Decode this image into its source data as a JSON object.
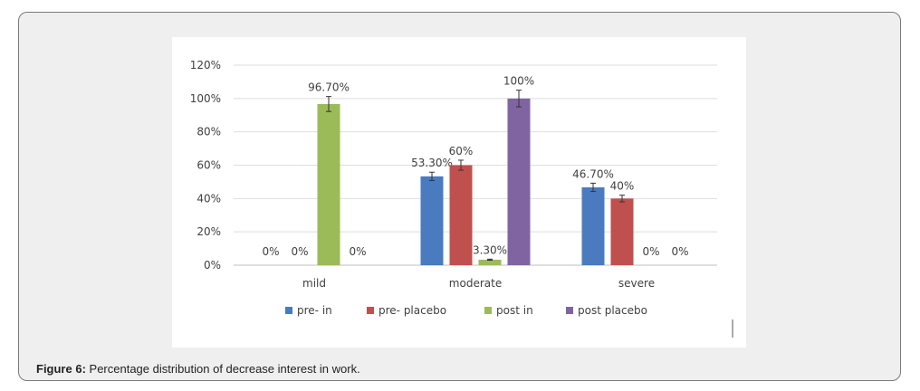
{
  "figure": {
    "caption_label": "Figure 6:",
    "caption_text": " Percentage distribution of decrease interest in work."
  },
  "chart_data": {
    "type": "bar",
    "categories": [
      "mild",
      "moderate",
      "severe"
    ],
    "series": [
      {
        "name": "pre- in",
        "color": "#4a7bbf",
        "values": [
          0,
          53.3,
          46.7
        ],
        "labels": [
          "0%",
          "53.30%",
          "46.70%"
        ]
      },
      {
        "name": "pre- placebo",
        "color": "#c0504d",
        "values": [
          0,
          60,
          40
        ],
        "labels": [
          "0%",
          "60%",
          "40%"
        ]
      },
      {
        "name": "post in",
        "color": "#9bbb59",
        "values": [
          96.7,
          3.3,
          0
        ],
        "labels": [
          "96.70%",
          "3.30%",
          "0%"
        ]
      },
      {
        "name": "post placebo",
        "color": "#8064a2",
        "values": [
          0,
          100,
          0
        ],
        "labels": [
          "0%",
          "100%",
          "0%"
        ]
      }
    ],
    "error_bars": [
      [
        0,
        2.5,
        2.5
      ],
      [
        0,
        3,
        2
      ],
      [
        4.5,
        0.3,
        0
      ],
      [
        0,
        5,
        0
      ]
    ],
    "yticks": [
      "0%",
      "20%",
      "40%",
      "60%",
      "80%",
      "100%",
      "120%"
    ],
    "ylim": [
      0,
      120
    ],
    "grid": true,
    "legend_position": "bottom",
    "title": "",
    "xlabel": "",
    "ylabel": ""
  }
}
